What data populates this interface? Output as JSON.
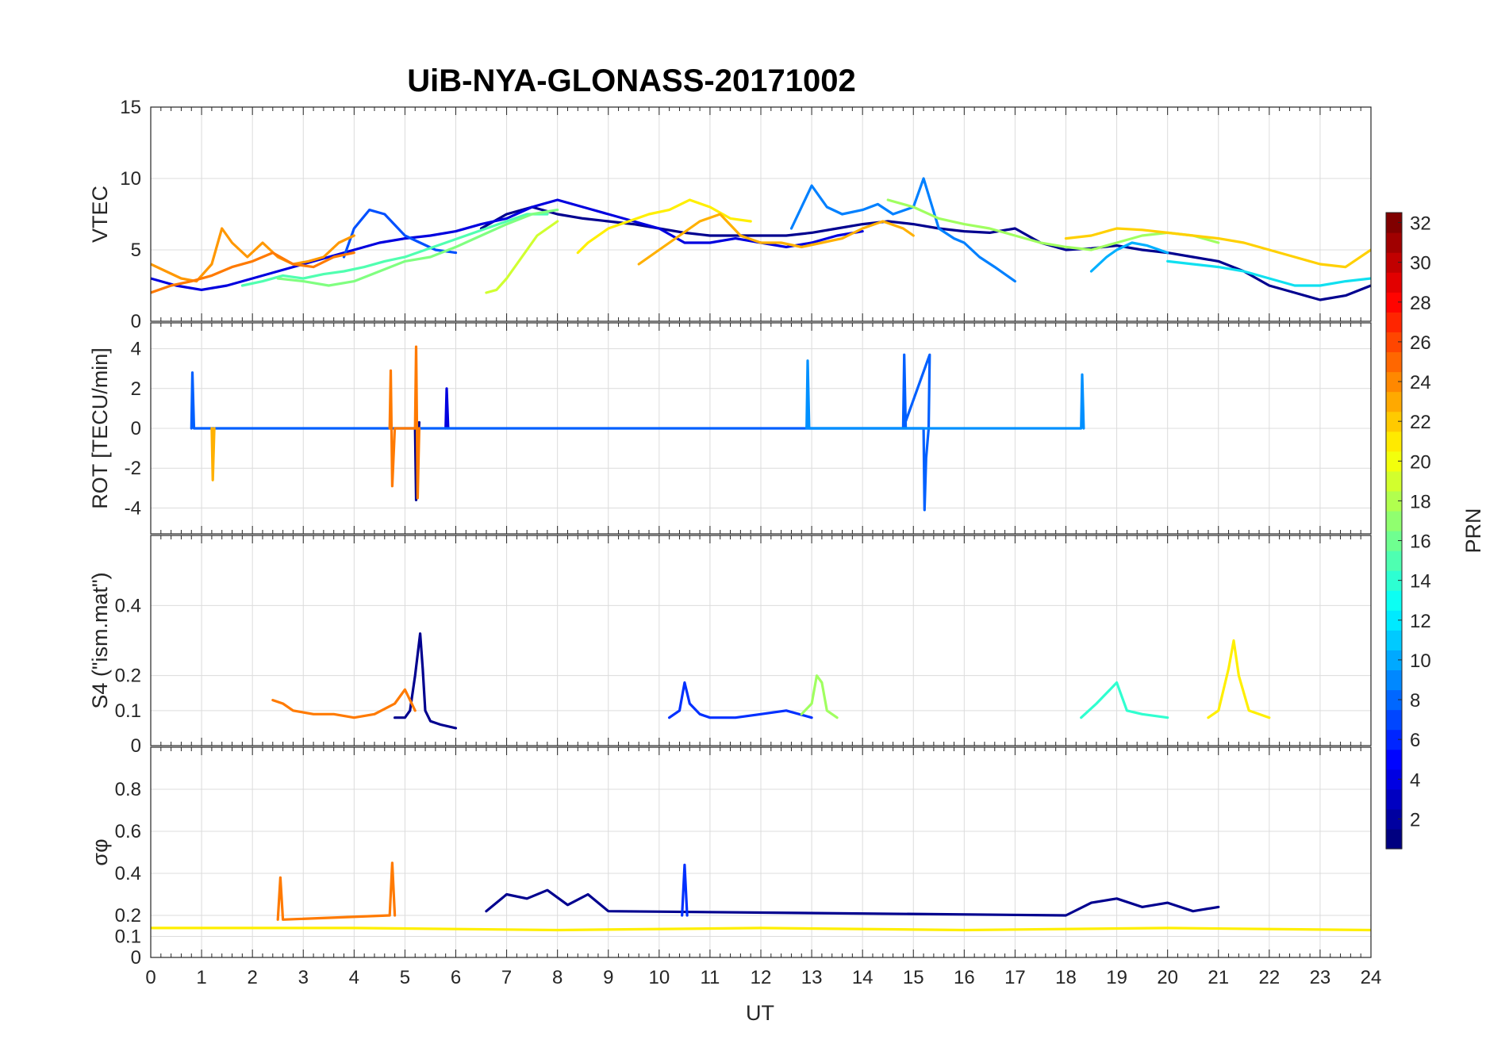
{
  "title": "UiB-NYA-GLONASS-20171002",
  "x_label": "UT",
  "x_ticks": [
    "0",
    "1",
    "2",
    "3",
    "4",
    "5",
    "6",
    "7",
    "8",
    "9",
    "10",
    "11",
    "12",
    "13",
    "14",
    "15",
    "16",
    "17",
    "18",
    "19",
    "20",
    "21",
    "22",
    "23",
    "24"
  ],
  "colorbar": {
    "label": "PRN",
    "ticks": [
      "2",
      "4",
      "6",
      "8",
      "10",
      "12",
      "14",
      "16",
      "18",
      "20",
      "22",
      "24",
      "26",
      "28",
      "30",
      "32"
    ],
    "range": [
      1,
      32
    ],
    "colormap": "jet"
  },
  "chart_data": [
    {
      "type": "line",
      "panel": "vtec",
      "ylabel": "VTEC",
      "ylim": [
        0,
        15
      ],
      "yticks": [
        "0",
        "5",
        "10",
        "15"
      ],
      "xlim": [
        0,
        24
      ],
      "grid": true,
      "series": [
        {
          "prn": 1,
          "color": "#00008f",
          "x": [
            6.5,
            7,
            7.5,
            8,
            8.5,
            9,
            9.5,
            10,
            10.5,
            11,
            11.5,
            12,
            12.5,
            13,
            13.5,
            14,
            14.5,
            15,
            15.5,
            16,
            16.5,
            17,
            17.5,
            18,
            18.5,
            19,
            19.5,
            20,
            20.5,
            21,
            21.5,
            22,
            22.5,
            23,
            23.5,
            24
          ],
          "y": [
            6.5,
            7.5,
            8,
            7.5,
            7.2,
            7,
            6.8,
            6.5,
            6.2,
            6,
            6,
            6,
            6,
            6.2,
            6.5,
            6.8,
            7,
            6.8,
            6.5,
            6.3,
            6.2,
            6.5,
            5.5,
            5,
            5.1,
            5.3,
            5,
            4.8,
            4.5,
            4.2,
            3.5,
            2.5,
            2,
            1.5,
            1.8,
            2.5
          ]
        },
        {
          "prn": 3,
          "color": "#0000df",
          "x": [
            0,
            0.5,
            1,
            1.5,
            2,
            2.5,
            3,
            3.5,
            4,
            4.5,
            5,
            5.5,
            6,
            6.5,
            7,
            7.5,
            8,
            8.5,
            9,
            9.5,
            10,
            10.5,
            11,
            11.5,
            12,
            12.5,
            13,
            13.5,
            14
          ],
          "y": [
            3,
            2.5,
            2.2,
            2.5,
            3,
            3.5,
            4,
            4.5,
            5,
            5.5,
            5.8,
            6,
            6.3,
            6.8,
            7.2,
            8,
            8.5,
            8,
            7.5,
            7,
            6.5,
            5.5,
            5.5,
            5.8,
            5.5,
            5.2,
            5.5,
            6,
            6.3
          ]
        },
        {
          "prn": 6,
          "color": "#0050ff",
          "x": [
            3.8,
            4,
            4.3,
            4.6,
            5,
            5.3,
            5.6,
            6
          ],
          "y": [
            4.5,
            6.5,
            7.8,
            7.5,
            6,
            5.5,
            5,
            4.8
          ]
        },
        {
          "prn": 8,
          "color": "#0080ff",
          "x": [
            12.6,
            12.8,
            13,
            13.3,
            13.6,
            14,
            14.3,
            14.6,
            15,
            15.2,
            15.5,
            15.8,
            16,
            16.3,
            16.6,
            17
          ],
          "y": [
            6.5,
            8,
            9.5,
            8,
            7.5,
            7.8,
            8.2,
            7.5,
            8,
            10,
            6.5,
            5.8,
            5.5,
            4.5,
            3.8,
            2.8
          ]
        },
        {
          "prn": 10,
          "color": "#00b0ff",
          "x": [
            18.5,
            18.8,
            19,
            19.3,
            19.6,
            20
          ],
          "y": [
            3.5,
            4.5,
            5,
            5.5,
            5.3,
            4.8
          ]
        },
        {
          "prn": 12,
          "color": "#10e0f0",
          "x": [
            20,
            20.5,
            21,
            21.5,
            22,
            22.5,
            23,
            23.5,
            24
          ],
          "y": [
            4.2,
            4,
            3.8,
            3.5,
            3,
            2.5,
            2.5,
            2.8,
            3
          ]
        },
        {
          "prn": 14,
          "color": "#50ffb0",
          "x": [
            1.8,
            2.2,
            2.6,
            3,
            3.4,
            3.8,
            4.2,
            4.6,
            5,
            5.4,
            5.8,
            6.2,
            6.6,
            7,
            7.4,
            7.8
          ],
          "y": [
            2.5,
            2.8,
            3.2,
            3,
            3.3,
            3.5,
            3.8,
            4.2,
            4.5,
            5,
            5.5,
            6,
            6.5,
            7,
            7.5,
            7.5
          ]
        },
        {
          "prn": 16,
          "color": "#80ff80",
          "x": [
            2.5,
            3,
            3.5,
            4,
            4.5,
            5,
            5.5,
            6,
            6.5,
            7,
            7.5,
            8
          ],
          "y": [
            3,
            2.8,
            2.5,
            2.8,
            3.5,
            4.2,
            4.5,
            5.2,
            6,
            6.8,
            7.5,
            7.8
          ]
        },
        {
          "prn": 17,
          "color": "#a0ff60",
          "x": [
            14.5,
            15,
            15.5,
            16,
            16.5,
            17,
            17.5,
            18,
            18.5,
            19,
            19.5,
            20,
            20.5,
            21
          ],
          "y": [
            8.5,
            8,
            7.2,
            6.8,
            6.5,
            6,
            5.5,
            5.2,
            5,
            5.5,
            6,
            6.2,
            6,
            5.5
          ]
        },
        {
          "prn": 19,
          "color": "#d0ff30",
          "x": [
            6.6,
            6.8,
            7,
            7.3,
            7.6,
            8
          ],
          "y": [
            2,
            2.2,
            3,
            4.5,
            6,
            7
          ]
        },
        {
          "prn": 20,
          "color": "#ffef00",
          "x": [
            8.4,
            8.6,
            9,
            9.4,
            9.8,
            10.2,
            10.6,
            11,
            11.4,
            11.8
          ],
          "y": [
            4.8,
            5.5,
            6.5,
            7,
            7.5,
            7.8,
            8.5,
            8,
            7.2,
            7
          ]
        },
        {
          "prn": 21,
          "color": "#ffd000",
          "x": [
            18,
            18.5,
            19,
            19.5,
            20,
            20.5,
            21,
            21.5,
            22,
            22.5,
            23,
            23.5,
            24
          ],
          "y": [
            5.8,
            6,
            6.5,
            6.4,
            6.2,
            6,
            5.8,
            5.5,
            5,
            4.5,
            4,
            3.8,
            5
          ]
        },
        {
          "prn": 22,
          "color": "#ffb000",
          "x": [
            9.6,
            10,
            10.4,
            10.8,
            11.2,
            11.6,
            12,
            12.4,
            12.8,
            13.2,
            13.6,
            14,
            14.4,
            14.8,
            15
          ],
          "y": [
            4,
            5,
            6,
            7,
            7.5,
            6,
            5.5,
            5.5,
            5.2,
            5.5,
            5.8,
            6.5,
            7,
            6.5,
            6
          ]
        },
        {
          "prn": 23,
          "color": "#ff9800",
          "x": [
            0,
            0.3,
            0.6,
            0.9,
            1.2,
            1.4,
            1.6,
            1.9,
            2.2,
            2.5,
            2.8,
            3.1,
            3.4,
            3.7,
            4
          ],
          "y": [
            4,
            3.5,
            3,
            2.8,
            4,
            6.5,
            5.5,
            4.5,
            5.5,
            4.5,
            4,
            4.2,
            4.5,
            5.5,
            6
          ]
        },
        {
          "prn": 24,
          "color": "#ff7a00",
          "x": [
            0,
            0.4,
            0.8,
            1.2,
            1.6,
            2,
            2.4,
            2.8,
            3.2,
            3.6,
            4
          ],
          "y": [
            2,
            2.5,
            2.8,
            3.2,
            3.8,
            4.2,
            4.8,
            4,
            3.8,
            4.5,
            4.8
          ]
        }
      ]
    },
    {
      "type": "line",
      "panel": "rot",
      "ylabel": "ROT [TECU/min]",
      "ylim": [
        -5.3,
        5.3
      ],
      "yticks": [
        "-4",
        "-2",
        "0",
        "2",
        "4"
      ],
      "xlim": [
        0,
        24
      ],
      "grid": true,
      "series": [
        {
          "prn": 1,
          "color": "#00008f",
          "x": [
            5.2,
            5.22,
            5.25,
            5.28
          ],
          "y": [
            0,
            -3.6,
            -1,
            0.3
          ]
        },
        {
          "prn": 4,
          "color": "#0000df",
          "x": [
            5.8,
            5.82,
            5.85
          ],
          "y": [
            0,
            2,
            0
          ]
        },
        {
          "prn": 7,
          "color": "#0060ff",
          "x": [
            0.8,
            0.82,
            0.85,
            15.2,
            15.22,
            15.25,
            15.3,
            15.32,
            14.8,
            14.82,
            14.85
          ],
          "y": [
            0,
            2.8,
            0,
            0,
            -4.1,
            -1.5,
            0,
            3.7,
            0,
            3.7,
            0
          ]
        },
        {
          "prn": 9,
          "color": "#0090ff",
          "x": [
            12.9,
            12.92,
            12.95,
            18.3,
            18.32,
            18.35
          ],
          "y": [
            0,
            3.4,
            0,
            0,
            2.7,
            0
          ]
        },
        {
          "prn": 22,
          "color": "#ffb000",
          "x": [
            1.2,
            1.22,
            1.25
          ],
          "y": [
            0,
            -2.6,
            0
          ]
        },
        {
          "prn": 24,
          "color": "#ff7a00",
          "x": [
            4.7,
            4.72,
            4.75,
            4.8,
            5.2,
            5.22,
            5.25,
            5.28
          ],
          "y": [
            0,
            2.9,
            -2.9,
            0,
            0,
            4.1,
            -3.5,
            0
          ]
        }
      ]
    },
    {
      "type": "line",
      "panel": "s4",
      "ylabel": "S4 (\"ism.mat\")",
      "ylim": [
        0,
        0.6
      ],
      "yticks": [
        "0",
        "0.1",
        "0.2",
        "0.4"
      ],
      "xlim": [
        0,
        24
      ],
      "grid": true,
      "series": [
        {
          "prn": 1,
          "color": "#00008f",
          "x": [
            4.8,
            5,
            5.1,
            5.2,
            5.3,
            5.35,
            5.4,
            5.5,
            5.7,
            6
          ],
          "y": [
            0.08,
            0.08,
            0.1,
            0.2,
            0.32,
            0.22,
            0.1,
            0.07,
            0.06,
            0.05
          ]
        },
        {
          "prn": 5,
          "color": "#0030ff",
          "x": [
            10.2,
            10.4,
            10.5,
            10.6,
            10.8,
            11,
            11.5,
            12,
            12.5,
            13
          ],
          "y": [
            0.08,
            0.1,
            0.18,
            0.12,
            0.09,
            0.08,
            0.08,
            0.09,
            0.1,
            0.08
          ]
        },
        {
          "prn": 13,
          "color": "#30ffd0",
          "x": [
            18.3,
            18.6,
            18.8,
            19,
            19.2,
            19.5,
            20
          ],
          "y": [
            0.08,
            0.12,
            0.15,
            0.18,
            0.1,
            0.09,
            0.08
          ]
        },
        {
          "prn": 17,
          "color": "#a0ff60",
          "x": [
            12.8,
            13,
            13.1,
            13.2,
            13.3,
            13.5
          ],
          "y": [
            0.09,
            0.12,
            0.2,
            0.18,
            0.1,
            0.08
          ]
        },
        {
          "prn": 20,
          "color": "#ffef00",
          "x": [
            20.8,
            21,
            21.2,
            21.3,
            21.4,
            21.6,
            22
          ],
          "y": [
            0.08,
            0.1,
            0.22,
            0.3,
            0.2,
            0.1,
            0.08
          ]
        },
        {
          "prn": 24,
          "color": "#ff7a00",
          "x": [
            2.4,
            2.6,
            2.8,
            3.2,
            3.6,
            4,
            4.4,
            4.8,
            5,
            5.2
          ],
          "y": [
            0.13,
            0.12,
            0.1,
            0.09,
            0.09,
            0.08,
            0.09,
            0.12,
            0.16,
            0.1
          ]
        }
      ]
    },
    {
      "type": "line",
      "panel": "sigma_phi",
      "ylabel": "σφ",
      "ylim": [
        0,
        1
      ],
      "yticks": [
        "0",
        "0.1",
        "0.2",
        "0.4",
        "0.6",
        "0.8"
      ],
      "xlim": [
        0,
        24
      ],
      "grid": true,
      "series": [
        {
          "prn": 1,
          "color": "#00008f",
          "x": [
            6.6,
            7,
            7.4,
            7.8,
            8.2,
            8.6,
            9,
            18,
            18.5,
            19,
            19.5,
            20,
            20.5,
            21
          ],
          "y": [
            0.22,
            0.3,
            0.28,
            0.32,
            0.25,
            0.3,
            0.22,
            0.2,
            0.26,
            0.28,
            0.24,
            0.26,
            0.22,
            0.24
          ]
        },
        {
          "prn": 5,
          "color": "#0030ff",
          "x": [
            10.45,
            10.5,
            10.55
          ],
          "y": [
            0.2,
            0.44,
            0.2
          ]
        },
        {
          "prn": 24,
          "color": "#ff7a00",
          "x": [
            2.5,
            2.55,
            2.6,
            4.7,
            4.75,
            4.8
          ],
          "y": [
            0.18,
            0.38,
            0.18,
            0.2,
            0.45,
            0.2
          ]
        },
        {
          "prn": 20,
          "color": "#ffef00",
          "x": [
            0,
            4,
            8,
            12,
            16,
            20,
            24
          ],
          "y": [
            0.14,
            0.14,
            0.13,
            0.14,
            0.13,
            0.14,
            0.13
          ]
        }
      ]
    }
  ]
}
